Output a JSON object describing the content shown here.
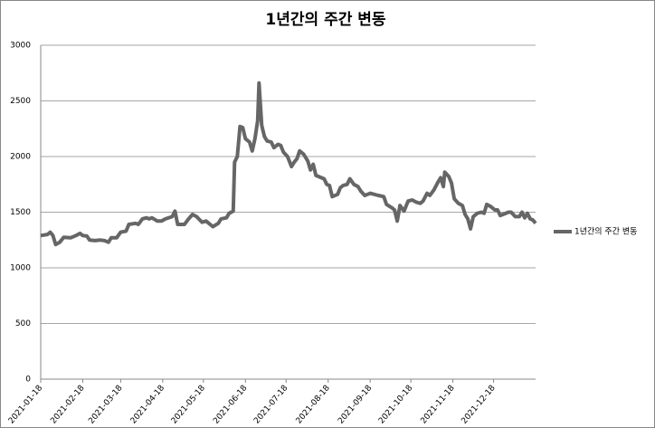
{
  "chart_data": {
    "type": "line",
    "title": "1년간의 주간 변동",
    "x": [
      "2021-01-18",
      "2021-01-23",
      "2021-01-25",
      "2021-01-27",
      "2021-01-29",
      "2021-02-01",
      "2021-02-04",
      "2021-02-09",
      "2021-02-13",
      "2021-02-16",
      "2021-02-18",
      "2021-02-21",
      "2021-02-23",
      "2021-02-27",
      "2021-03-03",
      "2021-03-06",
      "2021-03-09",
      "2021-03-11",
      "2021-03-15",
      "2021-03-18",
      "2021-03-22",
      "2021-03-24",
      "2021-03-29",
      "2021-03-31",
      "2021-04-03",
      "2021-04-06",
      "2021-04-08",
      "2021-04-10",
      "2021-04-14",
      "2021-04-17",
      "2021-04-20",
      "2021-04-25",
      "2021-04-27",
      "2021-04-29",
      "2021-05-04",
      "2021-05-07",
      "2021-05-10",
      "2021-05-13",
      "2021-05-17",
      "2021-05-20",
      "2021-05-25",
      "2021-05-29",
      "2021-05-31",
      "2021-06-04",
      "2021-06-06",
      "2021-06-09",
      "2021-06-10",
      "2021-06-12",
      "2021-06-14",
      "2021-06-16",
      "2021-06-18",
      "2021-06-21",
      "2021-06-23",
      "2021-06-25",
      "2021-06-27",
      "2021-06-28",
      "2021-06-30",
      "2021-07-02",
      "2021-07-04",
      "2021-07-07",
      "2021-07-09",
      "2021-07-12",
      "2021-07-14",
      "2021-07-16",
      "2021-07-19",
      "2021-07-22",
      "2021-07-24",
      "2021-07-26",
      "2021-07-28",
      "2021-07-31",
      "2021-08-03",
      "2021-08-05",
      "2021-08-07",
      "2021-08-09",
      "2021-08-13",
      "2021-08-15",
      "2021-08-17",
      "2021-08-19",
      "2021-08-21",
      "2021-08-25",
      "2021-08-27",
      "2021-08-29",
      "2021-09-01",
      "2021-09-03",
      "2021-09-06",
      "2021-09-09",
      "2021-09-11",
      "2021-09-14",
      "2021-09-16",
      "2021-09-18",
      "2021-09-21",
      "2021-09-24",
      "2021-09-28",
      "2021-09-30",
      "2021-10-04",
      "2021-10-06",
      "2021-10-08",
      "2021-10-10",
      "2021-10-13",
      "2021-10-16",
      "2021-10-19",
      "2021-10-22",
      "2021-10-25",
      "2021-10-27",
      "2021-10-30",
      "2021-11-01",
      "2021-11-04",
      "2021-11-07",
      "2021-11-09",
      "2021-11-11",
      "2021-11-12",
      "2021-11-15",
      "2021-11-17",
      "2021-11-19",
      "2021-11-22",
      "2021-11-25",
      "2021-11-27",
      "2021-11-29",
      "2021-12-01",
      "2021-12-03",
      "2021-12-06",
      "2021-12-09",
      "2021-12-11",
      "2021-12-13",
      "2021-12-16",
      "2021-12-19",
      "2021-12-21",
      "2021-12-23",
      "2021-12-25",
      "2021-12-29",
      "2021-12-31",
      "2022-01-03",
      "2022-01-06",
      "2022-01-08",
      "2022-01-10",
      "2022-01-12",
      "2022-01-14",
      "2022-01-16",
      "2022-01-18"
    ],
    "series": [
      {
        "name": "1년간의 주간 변동",
        "color": "#666666",
        "values": [
          1290,
          1300,
          1320,
          1290,
          1210,
          1230,
          1275,
          1270,
          1290,
          1310,
          1290,
          1285,
          1250,
          1245,
          1250,
          1245,
          1230,
          1270,
          1270,
          1320,
          1330,
          1390,
          1400,
          1390,
          1440,
          1450,
          1440,
          1450,
          1420,
          1420,
          1440,
          1460,
          1510,
          1390,
          1390,
          1440,
          1480,
          1460,
          1410,
          1420,
          1370,
          1400,
          1440,
          1450,
          1490,
          1510,
          1950,
          2000,
          2270,
          2260,
          2160,
          2130,
          2050,
          2160,
          2320,
          2660,
          2280,
          2180,
          2140,
          2130,
          2080,
          2110,
          2100,
          2040,
          2000,
          1910,
          1950,
          1980,
          2050,
          2020,
          1960,
          1880,
          1930,
          1830,
          1810,
          1800,
          1750,
          1740,
          1640,
          1660,
          1720,
          1740,
          1750,
          1800,
          1750,
          1730,
          1690,
          1650,
          1660,
          1670,
          1660,
          1650,
          1640,
          1570,
          1540,
          1520,
          1420,
          1560,
          1510,
          1600,
          1610,
          1590,
          1580,
          1600,
          1670,
          1650,
          1700,
          1770,
          1810,
          1730,
          1860,
          1820,
          1760,
          1620,
          1580,
          1560,
          1480,
          1440,
          1350,
          1460,
          1490,
          1500,
          1490,
          1570,
          1550,
          1520,
          1520,
          1470,
          1480,
          1500,
          1500,
          1460,
          1460,
          1500,
          1450,
          1490,
          1440,
          1430,
          1400
        ]
      }
    ],
    "xlim": [
      "2021-01-18",
      "2022-01-18"
    ],
    "xticks": [
      "2021-01-18",
      "2021-02-18",
      "2021-03-18",
      "2021-04-18",
      "2021-05-18",
      "2021-06-18",
      "2021-07-18",
      "2021-08-18",
      "2021-09-18",
      "2021-10-18",
      "2021-11-18",
      "2021-12-18"
    ],
    "ylim": [
      0,
      3000
    ],
    "yticks": [
      0,
      500,
      1000,
      1500,
      2000,
      2500,
      3000
    ],
    "grid": true,
    "legend": "right"
  }
}
